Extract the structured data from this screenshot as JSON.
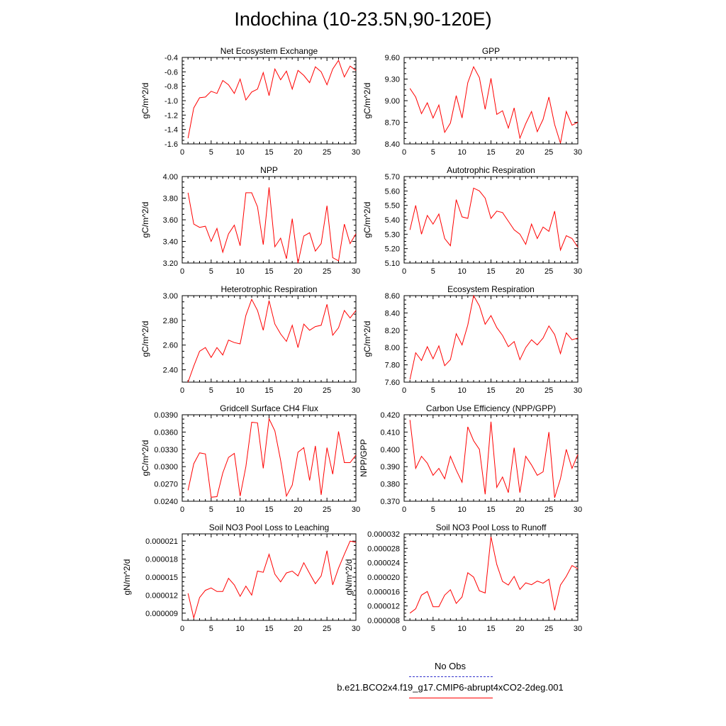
{
  "figure": {
    "title": "Indochina (10-23.5N,90-120E)"
  },
  "legend": {
    "obs_label": "No Obs",
    "model_label": "b.e21.BCO2x4.f19_g17.CMIP6-abrupt4xCO2-2deg.001",
    "obs_color": "#3333cc",
    "model_color": "#ff0000"
  },
  "chart_data": [
    {
      "type": "line",
      "title": "Net Ecosystem Exchange",
      "ylabel": "gC/m^2/d",
      "xlabel": "",
      "xlim": [
        0,
        30
      ],
      "xticks": [
        0,
        5,
        10,
        15,
        20,
        25,
        30
      ],
      "ylim": [
        -1.6,
        -0.4
      ],
      "yticks": [
        -1.6,
        -1.4,
        -1.2,
        -1.0,
        -0.8,
        -0.6,
        -0.4
      ],
      "ytick_labels": [
        "-1.6",
        "-1.4",
        "-1.2",
        "-1.0",
        "-0.8",
        "-0.6",
        "-0.4"
      ],
      "x": [
        1,
        2,
        3,
        4,
        5,
        6,
        7,
        8,
        9,
        10,
        11,
        12,
        13,
        14,
        15,
        16,
        17,
        18,
        19,
        20,
        21,
        22,
        23,
        24,
        25,
        26,
        27,
        28,
        29,
        30
      ],
      "values": [
        -1.52,
        -1.1,
        -0.96,
        -0.95,
        -0.87,
        -0.9,
        -0.72,
        -0.78,
        -0.9,
        -0.7,
        -0.99,
        -0.88,
        -0.84,
        -0.61,
        -0.93,
        -0.56,
        -0.71,
        -0.59,
        -0.84,
        -0.58,
        -0.65,
        -0.75,
        -0.53,
        -0.6,
        -0.78,
        -0.56,
        -0.44,
        -0.67,
        -0.52,
        -0.58
      ]
    },
    {
      "type": "line",
      "title": "GPP",
      "ylabel": "gC/m^2/d",
      "xlabel": "",
      "xlim": [
        0,
        30
      ],
      "xticks": [
        0,
        5,
        10,
        15,
        20,
        25,
        30
      ],
      "ylim": [
        8.4,
        9.6
      ],
      "yticks": [
        8.4,
        8.7,
        9.0,
        9.3,
        9.6
      ],
      "ytick_labels": [
        "8.40",
        "8.70",
        "9.00",
        "9.30",
        "9.60"
      ],
      "x": [
        1,
        2,
        3,
        4,
        5,
        6,
        7,
        8,
        9,
        10,
        11,
        12,
        13,
        14,
        15,
        16,
        17,
        18,
        19,
        20,
        21,
        22,
        23,
        24,
        25,
        26,
        27,
        28,
        29,
        30
      ],
      "values": [
        9.17,
        9.05,
        8.82,
        8.97,
        8.76,
        8.94,
        8.56,
        8.69,
        9.07,
        8.76,
        9.25,
        9.47,
        9.32,
        8.88,
        9.31,
        8.81,
        8.86,
        8.62,
        8.9,
        8.48,
        8.68,
        8.85,
        8.57,
        8.74,
        9.05,
        8.67,
        8.41,
        8.85,
        8.66,
        8.7
      ]
    },
    {
      "type": "line",
      "title": "NPP",
      "ylabel": "gC/m^2/d",
      "xlabel": "",
      "xlim": [
        0,
        30
      ],
      "xticks": [
        0,
        5,
        10,
        15,
        20,
        25,
        30
      ],
      "ylim": [
        3.2,
        4.0
      ],
      "yticks": [
        3.2,
        3.4,
        3.6,
        3.8,
        4.0
      ],
      "ytick_labels": [
        "3.20",
        "3.40",
        "3.60",
        "3.80",
        "4.00"
      ],
      "x": [
        1,
        2,
        3,
        4,
        5,
        6,
        7,
        8,
        9,
        10,
        11,
        12,
        13,
        14,
        15,
        16,
        17,
        18,
        19,
        20,
        21,
        22,
        23,
        24,
        25,
        26,
        27,
        28,
        29,
        30
      ],
      "values": [
        3.85,
        3.56,
        3.53,
        3.54,
        3.4,
        3.52,
        3.3,
        3.47,
        3.55,
        3.36,
        3.85,
        3.85,
        3.72,
        3.37,
        3.9,
        3.35,
        3.43,
        3.24,
        3.61,
        3.2,
        3.45,
        3.48,
        3.31,
        3.38,
        3.73,
        3.25,
        3.22,
        3.56,
        3.38,
        3.47
      ]
    },
    {
      "type": "line",
      "title": "Autotrophic Respiration",
      "ylabel": "gC/m^2/d",
      "xlabel": "",
      "xlim": [
        0,
        30
      ],
      "xticks": [
        0,
        5,
        10,
        15,
        20,
        25,
        30
      ],
      "ylim": [
        5.1,
        5.7
      ],
      "yticks": [
        5.1,
        5.2,
        5.3,
        5.4,
        5.5,
        5.6,
        5.7
      ],
      "ytick_labels": [
        "5.10",
        "5.20",
        "5.30",
        "5.40",
        "5.50",
        "5.60",
        "5.70"
      ],
      "x": [
        1,
        2,
        3,
        4,
        5,
        6,
        7,
        8,
        9,
        10,
        11,
        12,
        13,
        14,
        15,
        16,
        17,
        18,
        19,
        20,
        21,
        22,
        23,
        24,
        25,
        26,
        27,
        28,
        29,
        30
      ],
      "values": [
        5.33,
        5.5,
        5.3,
        5.43,
        5.37,
        5.44,
        5.27,
        5.22,
        5.54,
        5.42,
        5.41,
        5.62,
        5.6,
        5.55,
        5.41,
        5.46,
        5.45,
        5.39,
        5.33,
        5.3,
        5.23,
        5.37,
        5.27,
        5.35,
        5.32,
        5.46,
        5.19,
        5.29,
        5.27,
        5.21
      ]
    },
    {
      "type": "line",
      "title": "Heterotrophic Respiration",
      "ylabel": "gC/m^2/d",
      "xlabel": "",
      "xlim": [
        0,
        30
      ],
      "xticks": [
        0,
        5,
        10,
        15,
        20,
        25,
        30
      ],
      "ylim": [
        2.3,
        3.0
      ],
      "yticks": [
        2.4,
        2.6,
        2.8,
        3.0
      ],
      "ytick_labels": [
        "2.40",
        "2.60",
        "2.80",
        "3.00"
      ],
      "x": [
        1,
        2,
        3,
        4,
        5,
        6,
        7,
        8,
        9,
        10,
        11,
        12,
        13,
        14,
        15,
        16,
        17,
        18,
        19,
        20,
        21,
        22,
        23,
        24,
        25,
        26,
        27,
        28,
        29,
        30
      ],
      "values": [
        2.3,
        2.43,
        2.55,
        2.58,
        2.5,
        2.58,
        2.52,
        2.64,
        2.62,
        2.61,
        2.84,
        2.97,
        2.88,
        2.72,
        2.96,
        2.77,
        2.69,
        2.63,
        2.76,
        2.58,
        2.77,
        2.72,
        2.75,
        2.76,
        2.93,
        2.68,
        2.74,
        2.88,
        2.82,
        2.88
      ]
    },
    {
      "type": "line",
      "title": "Ecosystem Respiration",
      "ylabel": "gC/m^2/d",
      "xlabel": "",
      "xlim": [
        0,
        30
      ],
      "xticks": [
        0,
        5,
        10,
        15,
        20,
        25,
        30
      ],
      "ylim": [
        7.6,
        8.6
      ],
      "yticks": [
        7.6,
        7.8,
        8.0,
        8.2,
        8.4,
        8.6
      ],
      "ytick_labels": [
        "7.60",
        "7.80",
        "8.00",
        "8.20",
        "8.40",
        "8.60"
      ],
      "x": [
        1,
        2,
        3,
        4,
        5,
        6,
        7,
        8,
        9,
        10,
        11,
        12,
        13,
        14,
        15,
        16,
        17,
        18,
        19,
        20,
        21,
        22,
        23,
        24,
        25,
        26,
        27,
        28,
        29,
        30
      ],
      "values": [
        7.63,
        7.94,
        7.85,
        8.01,
        7.87,
        8.02,
        7.79,
        7.86,
        8.16,
        8.03,
        8.26,
        8.6,
        8.48,
        8.27,
        8.37,
        8.23,
        8.14,
        8.01,
        8.07,
        7.86,
        8.0,
        8.09,
        8.03,
        8.11,
        8.25,
        8.15,
        7.93,
        8.17,
        8.09,
        8.11
      ]
    },
    {
      "type": "line",
      "title": "Gridcell Surface CH4 Flux",
      "ylabel": "gC/m^2/d",
      "xlabel": "",
      "xlim": [
        0,
        30
      ],
      "xticks": [
        0,
        5,
        10,
        15,
        20,
        25,
        30
      ],
      "ylim": [
        0.024,
        0.039
      ],
      "yticks": [
        0.024,
        0.027,
        0.03,
        0.033,
        0.036,
        0.039
      ],
      "ytick_labels": [
        "0.0240",
        "0.0270",
        "0.0300",
        "0.0330",
        "0.0360",
        "0.0390"
      ],
      "x": [
        1,
        2,
        3,
        4,
        5,
        6,
        7,
        8,
        9,
        10,
        11,
        12,
        13,
        14,
        15,
        16,
        17,
        18,
        19,
        20,
        21,
        22,
        23,
        24,
        25,
        26,
        27,
        28,
        29,
        30
      ],
      "values": [
        0.0259,
        0.0305,
        0.0324,
        0.0322,
        0.0247,
        0.0248,
        0.0289,
        0.0316,
        0.0323,
        0.0249,
        0.03,
        0.0377,
        0.0376,
        0.0297,
        0.0383,
        0.0362,
        0.0311,
        0.0249,
        0.0268,
        0.0325,
        0.0333,
        0.0276,
        0.0336,
        0.0251,
        0.0333,
        0.0287,
        0.0361,
        0.0307,
        0.0307,
        0.032
      ]
    },
    {
      "type": "line",
      "title": "Carbon Use Efficiency (NPP/GPP)",
      "ylabel": "NPP/GPP",
      "xlabel": "",
      "xlim": [
        0,
        30
      ],
      "xticks": [
        0,
        5,
        10,
        15,
        20,
        25,
        30
      ],
      "ylim": [
        0.37,
        0.42
      ],
      "yticks": [
        0.37,
        0.38,
        0.39,
        0.4,
        0.41,
        0.42
      ],
      "ytick_labels": [
        "0.370",
        "0.380",
        "0.390",
        "0.400",
        "0.410",
        "0.420"
      ],
      "x": [
        1,
        2,
        3,
        4,
        5,
        6,
        7,
        8,
        9,
        10,
        11,
        12,
        13,
        14,
        15,
        16,
        17,
        18,
        19,
        20,
        21,
        22,
        23,
        24,
        25,
        26,
        27,
        28,
        29,
        30
      ],
      "values": [
        0.417,
        0.389,
        0.396,
        0.392,
        0.385,
        0.389,
        0.383,
        0.396,
        0.388,
        0.381,
        0.413,
        0.405,
        0.4,
        0.374,
        0.416,
        0.378,
        0.384,
        0.375,
        0.401,
        0.375,
        0.396,
        0.391,
        0.385,
        0.387,
        0.41,
        0.372,
        0.383,
        0.4,
        0.389,
        0.397
      ]
    },
    {
      "type": "line",
      "title": "Soil NO3 Pool Loss to Leaching",
      "ylabel": "gN/m^2/d",
      "xlabel": "",
      "xlim": [
        0,
        30
      ],
      "xticks": [
        0,
        5,
        10,
        15,
        20,
        25,
        30
      ],
      "ylim": [
        7.8e-06,
        2.22e-05
      ],
      "yticks": [
        9e-06,
        1.2e-05,
        1.5e-05,
        1.8e-05,
        2.1e-05
      ],
      "ytick_labels": [
        "0.000009",
        "0.000012",
        "0.000015",
        "0.000018",
        "0.000021"
      ],
      "x": [
        1,
        2,
        3,
        4,
        5,
        6,
        7,
        8,
        9,
        10,
        11,
        12,
        13,
        14,
        15,
        16,
        17,
        18,
        19,
        20,
        21,
        22,
        23,
        24,
        25,
        26,
        27,
        28,
        29,
        30
      ],
      "values": [
        1.23e-05,
        8.2e-06,
        1.16e-05,
        1.28e-05,
        1.32e-05,
        1.26e-05,
        1.26e-05,
        1.48e-05,
        1.37e-05,
        1.18e-05,
        1.35e-05,
        1.2e-05,
        1.6e-05,
        1.58e-05,
        1.88e-05,
        1.55e-05,
        1.42e-05,
        1.57e-05,
        1.6e-05,
        1.52e-05,
        1.74e-05,
        1.56e-05,
        1.39e-05,
        1.52e-05,
        1.94e-05,
        1.37e-05,
        1.65e-05,
        1.88e-05,
        2.1e-05,
        2.08e-05
      ]
    },
    {
      "type": "line",
      "title": "Soil NO3 Pool Loss to Runoff",
      "ylabel": "gN/m^2/d",
      "xlabel": "",
      "xlim": [
        0,
        30
      ],
      "xticks": [
        0,
        5,
        10,
        15,
        20,
        25,
        30
      ],
      "ylim": [
        8e-06,
        3.2e-05
      ],
      "yticks": [
        8e-06,
        1.2e-05,
        1.6e-05,
        2e-05,
        2.4e-05,
        2.8e-05,
        3.2e-05
      ],
      "ytick_labels": [
        "0.000008",
        "0.000012",
        "0.000016",
        "0.000020",
        "0.000024",
        "0.000028",
        "0.000032"
      ],
      "x": [
        1,
        2,
        3,
        4,
        5,
        6,
        7,
        8,
        9,
        10,
        11,
        12,
        13,
        14,
        15,
        16,
        17,
        18,
        19,
        20,
        21,
        22,
        23,
        24,
        25,
        26,
        27,
        28,
        29,
        30
      ],
      "values": [
        1e-05,
        1.12e-05,
        1.5e-05,
        1.6e-05,
        1.18e-05,
        1.18e-05,
        1.5e-05,
        1.65e-05,
        1.27e-05,
        1.45e-05,
        2.12e-05,
        2e-05,
        1.62e-05,
        1.56e-05,
        3.12e-05,
        2.35e-05,
        1.88e-05,
        1.78e-05,
        2.02e-05,
        1.66e-05,
        1.84e-05,
        1.79e-05,
        1.89e-05,
        1.83e-05,
        1.94e-05,
        1.08e-05,
        1.78e-05,
        2.02e-05,
        2.32e-05,
        2.23e-05
      ]
    }
  ]
}
